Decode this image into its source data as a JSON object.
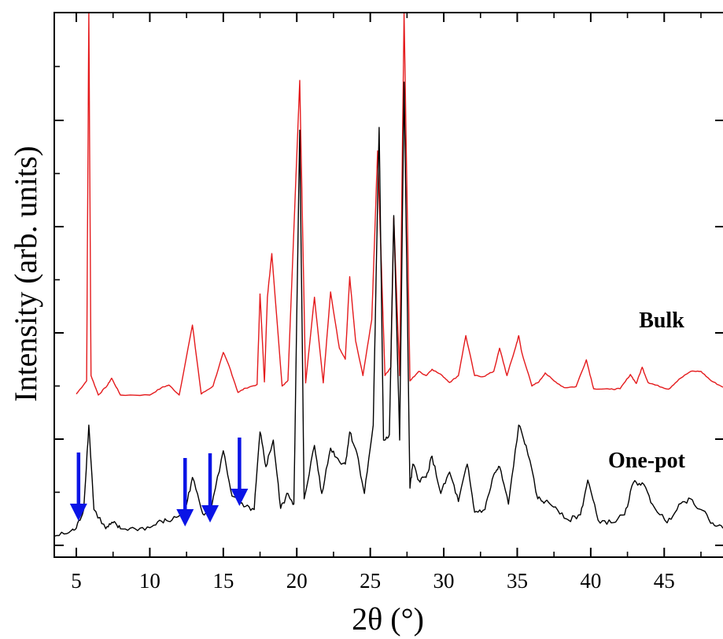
{
  "chart_data": {
    "type": "line",
    "title": "",
    "xlabel": "2θ (°)",
    "ylabel": "Intensity (arb. units)",
    "xlim": [
      3.5,
      49
    ],
    "ylim": [
      0,
      1
    ],
    "x_ticks": [
      5,
      10,
      15,
      20,
      25,
      30,
      35,
      40,
      45
    ],
    "x_tick_labels": [
      "5",
      "10",
      "15",
      "20",
      "25",
      "30",
      "35",
      "40",
      "45"
    ],
    "grid": false,
    "legend": "none",
    "series": [
      {
        "name": "Bulk",
        "color": "#e41a1c",
        "x": [
          5.0,
          5.7,
          5.85,
          6.0,
          6.5,
          7.1,
          7.4,
          8.0,
          10.0,
          10.8,
          11.3,
          12.0,
          12.9,
          13.5,
          14.3,
          15.0,
          15.4,
          16.0,
          16.5,
          17.3,
          17.5,
          17.8,
          18.0,
          18.3,
          19.0,
          19.4,
          20.2,
          20.6,
          21.2,
          21.8,
          22.3,
          22.9,
          23.3,
          23.6,
          24.0,
          24.5,
          25.1,
          25.5,
          26.0,
          26.4,
          26.6,
          27.0,
          27.3,
          27.7,
          28.3,
          28.8,
          29.2,
          29.9,
          30.4,
          31.0,
          31.5,
          32.1,
          32.7,
          33.4,
          33.8,
          34.3,
          34.9,
          35.1,
          35.3,
          36.0,
          36.5,
          36.9,
          37.5,
          38.2,
          39.0,
          39.7,
          40.2,
          41.3,
          42.0,
          42.7,
          43.1,
          43.5,
          43.9,
          44.4,
          45.3,
          46.0,
          46.8,
          47.5,
          48.2,
          49.0
        ],
        "y": [
          0.275,
          0.3,
          1.0,
          0.31,
          0.273,
          0.291,
          0.305,
          0.273,
          0.273,
          0.287,
          0.292,
          0.273,
          0.406,
          0.275,
          0.29,
          0.354,
          0.328,
          0.278,
          0.286,
          0.293,
          0.465,
          0.298,
          0.459,
          0.542,
          0.29,
          0.301,
          0.871,
          0.296,
          0.459,
          0.296,
          0.469,
          0.362,
          0.341,
          0.498,
          0.376,
          0.31,
          0.416,
          0.737,
          0.31,
          0.326,
          0.61,
          0.31,
          1.0,
          0.3,
          0.318,
          0.31,
          0.322,
          0.31,
          0.297,
          0.31,
          0.386,
          0.31,
          0.308,
          0.318,
          0.362,
          0.31,
          0.365,
          0.386,
          0.355,
          0.29,
          0.299,
          0.315,
          0.3,
          0.287,
          0.289,
          0.34,
          0.285,
          0.284,
          0.285,
          0.312,
          0.295,
          0.326,
          0.297,
          0.292,
          0.284,
          0.303,
          0.318,
          0.318,
          0.3,
          0.288
        ]
      },
      {
        "name": "One-pot",
        "color": "#000000",
        "x": [
          3.5,
          4.5,
          5.0,
          5.5,
          5.85,
          6.2,
          7.0,
          7.5,
          8.0,
          9.0,
          10.0,
          10.8,
          11.5,
          12.4,
          12.9,
          13.6,
          14.2,
          15.0,
          15.6,
          16.4,
          17.1,
          17.5,
          17.9,
          18.4,
          18.9,
          19.4,
          19.8,
          20.2,
          20.5,
          21.2,
          21.7,
          22.3,
          22.9,
          23.3,
          23.6,
          24.1,
          24.6,
          25.2,
          25.6,
          25.9,
          26.3,
          26.6,
          27.0,
          27.3,
          27.7,
          27.9,
          28.3,
          28.8,
          29.2,
          29.8,
          30.4,
          31.0,
          31.6,
          32.1,
          32.8,
          33.4,
          33.8,
          34.4,
          35.1,
          35.6,
          36.4,
          36.9,
          37.6,
          38.5,
          39.3,
          39.8,
          40.5,
          41.4,
          42.3,
          42.9,
          43.5,
          44.2,
          45.2,
          46.0,
          46.8,
          47.5,
          48.3,
          49.0
        ],
        "y": [
          0.02,
          0.027,
          0.035,
          0.07,
          0.228,
          0.07,
          0.034,
          0.045,
          0.034,
          0.034,
          0.036,
          0.048,
          0.05,
          0.068,
          0.13,
          0.062,
          0.075,
          0.18,
          0.095,
          0.075,
          0.07,
          0.215,
          0.15,
          0.2,
          0.072,
          0.1,
          0.08,
          0.78,
          0.09,
          0.19,
          0.1,
          0.185,
          0.16,
          0.155,
          0.215,
          0.175,
          0.1,
          0.228,
          0.785,
          0.2,
          0.21,
          0.62,
          0.2,
          0.87,
          0.11,
          0.155,
          0.125,
          0.13,
          0.17,
          0.1,
          0.14,
          0.085,
          0.155,
          0.065,
          0.07,
          0.135,
          0.15,
          0.08,
          0.228,
          0.19,
          0.09,
          0.085,
          0.075,
          0.05,
          0.06,
          0.125,
          0.05,
          0.045,
          0.06,
          0.12,
          0.12,
          0.08,
          0.045,
          0.08,
          0.09,
          0.07,
          0.045,
          0.035
        ]
      }
    ],
    "annotations": [
      {
        "text": "Bulk",
        "x": 46.3,
        "series": "Bulk"
      },
      {
        "text": "One-pot",
        "x": 45.9,
        "series": "One-pot"
      }
    ],
    "arrows": {
      "color": "#0a14e6",
      "x": [
        5.15,
        12.4,
        14.1,
        16.1
      ]
    }
  }
}
